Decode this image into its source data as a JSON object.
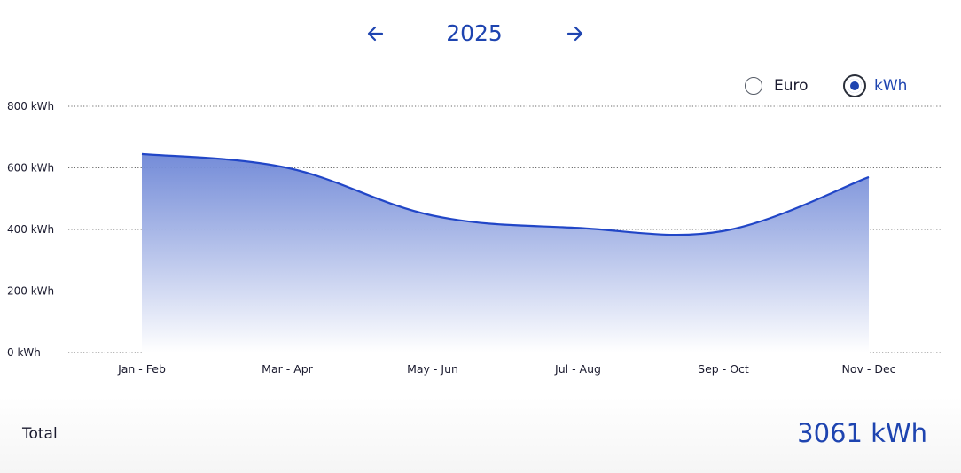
{
  "year_nav": {
    "year": "2025",
    "prev_icon": "arrow-left-icon",
    "next_icon": "arrow-right-icon"
  },
  "unit_toggle": {
    "options": [
      {
        "label": "Euro",
        "selected": false
      },
      {
        "label": "kWh",
        "selected": true
      }
    ]
  },
  "colors": {
    "accent": "#1e44b0",
    "line": "#2146c7",
    "fill_top": "#6d86d6",
    "fill_bottom": "#ffffff",
    "grid": "#6b6b6b",
    "text": "#1a1a2e"
  },
  "chart_data": {
    "type": "area",
    "categories": [
      "Jan - Feb",
      "Mar - Apr",
      "May - Jun",
      "Jul - Aug",
      "Sep - Oct",
      "Nov - Dec"
    ],
    "series": [
      {
        "values": [
          645,
          600,
          445,
          405,
          395,
          570
        ]
      }
    ],
    "y_ticks": [
      "0 kWh",
      "200 kWh",
      "400 kWh",
      "600 kWh",
      "800 kWh"
    ],
    "ylim": [
      0,
      800
    ],
    "grid": "dotted horizontal",
    "legend": "none"
  },
  "total": {
    "label": "Total",
    "value": "3061 kWh"
  }
}
